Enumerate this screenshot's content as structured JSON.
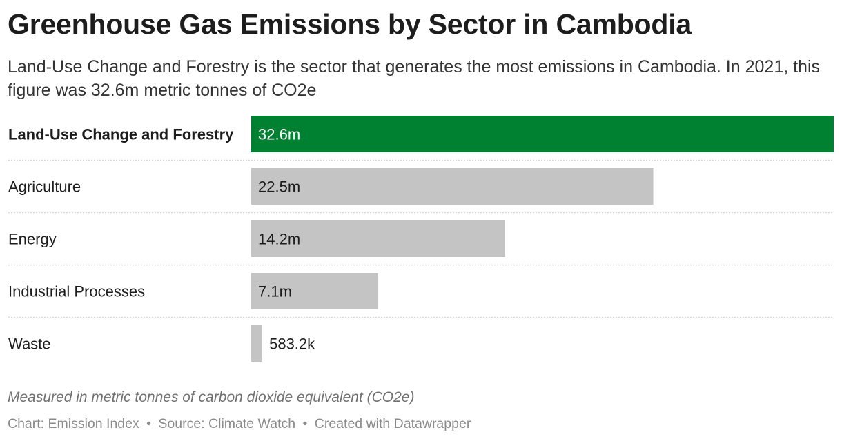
{
  "chart_data": {
    "type": "bar",
    "orientation": "horizontal",
    "title": "Greenhouse Gas Emissions by Sector in Cambodia",
    "subtitle": "Land-Use Change and Forestry is the sector that generates the most emissions in Cambodia. In 2021, this figure was 32.6m metric tonnes of CO2e",
    "categories": [
      "Land-Use Change and Forestry",
      "Agriculture",
      "Energy",
      "Industrial Processes",
      "Waste"
    ],
    "values": [
      32600000,
      22500000,
      14200000,
      7100000,
      583200
    ],
    "value_labels": [
      "32.6m",
      "22.5m",
      "14.2m",
      "7.1m",
      "583.2k"
    ],
    "highlight_index": 0,
    "xlim": [
      0,
      32600000
    ],
    "grid": false,
    "colors": {
      "highlight": "#008031",
      "default": "#c4c4c4",
      "separator": "#d7d7d7"
    },
    "notes": "Measured in metric tonnes of carbon dioxide equivalent (CO2e)"
  },
  "footer": {
    "chart_credit": "Chart: Emission Index",
    "source": "Source: Climate Watch",
    "created_with": "Created with Datawrapper",
    "separator": "•"
  }
}
